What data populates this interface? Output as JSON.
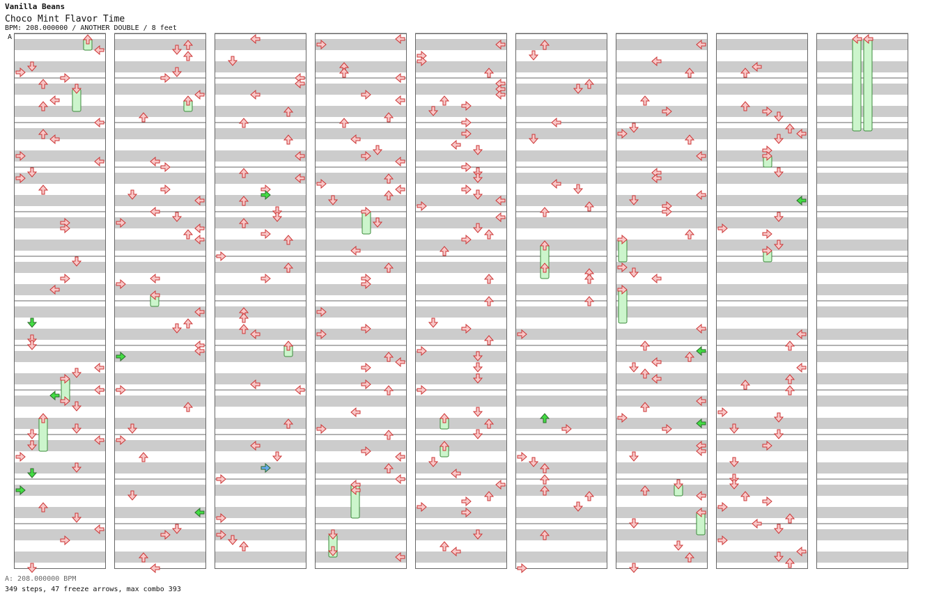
{
  "song": {
    "artist": "Vanilla Beans",
    "title": "Choco Mint Flavor Time",
    "meta": "BPM: 208.000000 / ANOTHER DOUBLE / 8 feet"
  },
  "bpm_marker": "A",
  "footer": {
    "bpm_line": "A: 208.000000 BPM",
    "stats_line": "349 steps, 47 freeze arrows, max combo 393"
  },
  "colors": {
    "stripe": "#cccccc",
    "border": "#666666",
    "step_fill": "#f8c8c8",
    "step_stroke": "#cc3333",
    "freeze_fill": "#ccf5cc",
    "freeze_stroke": "#3a8a3a",
    "shock_green": "#44dd44",
    "accent_blue": "#66aaee"
  },
  "icons": {
    "step": "arrow-icon",
    "freeze": "freeze-arrow-icon"
  }
}
